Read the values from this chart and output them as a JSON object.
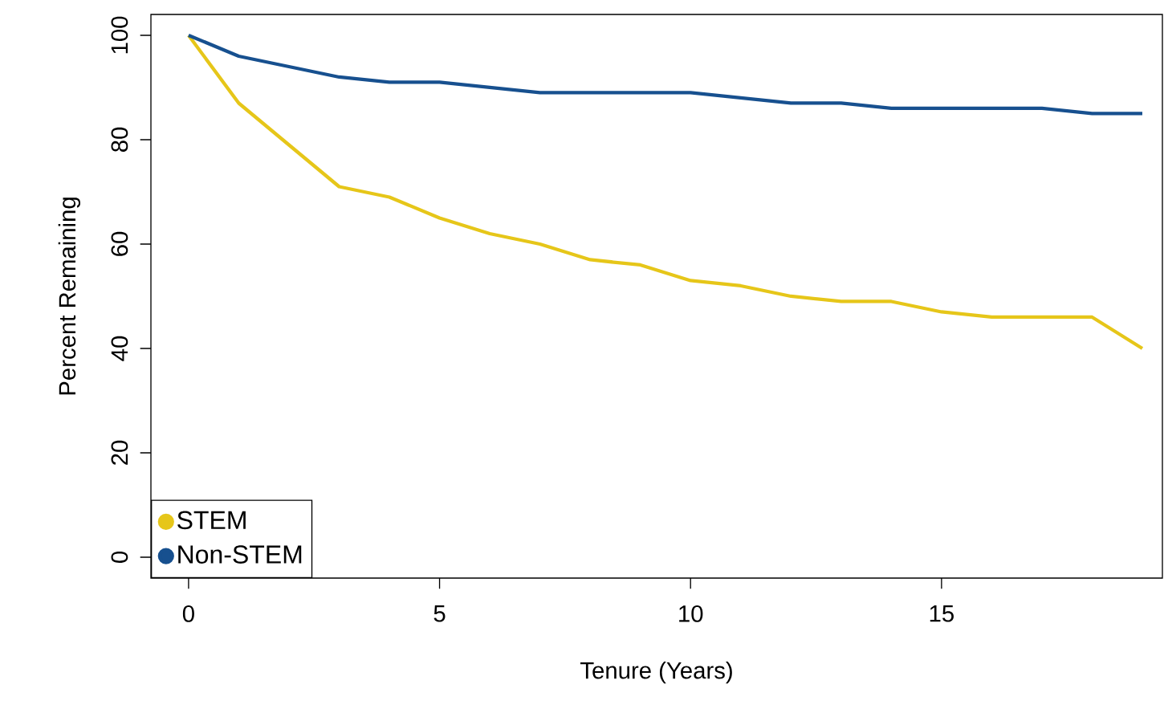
{
  "chart_data": {
    "type": "line",
    "xlabel": "Tenure (Years)",
    "ylabel": "Percent Remaining",
    "x": [
      0,
      1,
      2,
      3,
      4,
      5,
      6,
      7,
      8,
      9,
      10,
      11,
      12,
      13,
      14,
      15,
      16,
      17,
      18,
      19
    ],
    "series": [
      {
        "name": "STEM",
        "color": "#e6c619",
        "values": [
          100,
          87,
          79,
          71,
          69,
          65,
          62,
          60,
          57,
          56,
          53,
          52,
          50,
          49,
          49,
          47,
          46,
          46,
          46,
          40
        ]
      },
      {
        "name": "Non-STEM",
        "color": "#17508f",
        "values": [
          100,
          96,
          94,
          92,
          91,
          91,
          90,
          89,
          89,
          89,
          89,
          88,
          87,
          87,
          86,
          86,
          86,
          86,
          85,
          85
        ]
      }
    ],
    "xlim": [
      -0.75,
      19.4
    ],
    "ylim": [
      -4,
      104
    ],
    "xticks": [
      0,
      5,
      10,
      15
    ],
    "yticks": [
      0,
      20,
      40,
      60,
      80,
      100
    ],
    "grid": false,
    "legend": "bottom left",
    "marker": "none",
    "line_style": "solid"
  }
}
